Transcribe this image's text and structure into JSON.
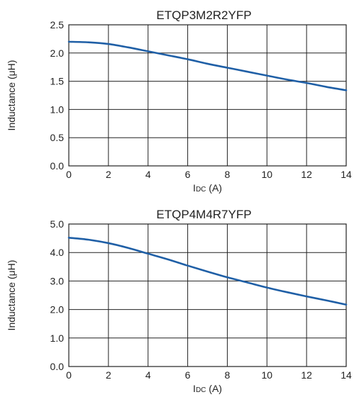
{
  "chart_data": [
    {
      "type": "line",
      "title": "ETQP3M2R2YFP",
      "xlabel": "IDC (A)",
      "ylabel": "Inductance (μH)",
      "xlim": [
        0,
        14
      ],
      "ylim": [
        0,
        2.5
      ],
      "x_ticks": [
        "0",
        "2",
        "4",
        "6",
        "8",
        "10",
        "12",
        "14"
      ],
      "y_ticks": [
        "0.0",
        "0.5",
        "1.0",
        "1.5",
        "2.0",
        "2.5"
      ],
      "grid": true,
      "line_color": "#1f5fa6",
      "series": [
        {
          "x": [
            0,
            1,
            2,
            3,
            4,
            5,
            6,
            7,
            8,
            9,
            10,
            11,
            12,
            13,
            14
          ],
          "values": [
            2.2,
            2.19,
            2.16,
            2.1,
            2.03,
            1.96,
            1.89,
            1.81,
            1.74,
            1.67,
            1.6,
            1.53,
            1.47,
            1.4,
            1.34
          ]
        }
      ]
    },
    {
      "type": "line",
      "title": "ETQP4M4R7YFP",
      "xlabel": "IDC (A)",
      "ylabel": "Inductance (μH)",
      "xlim": [
        0,
        14
      ],
      "ylim": [
        0,
        5.0
      ],
      "x_ticks": [
        "0",
        "2",
        "4",
        "6",
        "8",
        "10",
        "12",
        "14"
      ],
      "y_ticks": [
        "0.0",
        "1.0",
        "2.0",
        "3.0",
        "4.0",
        "5.0"
      ],
      "grid": true,
      "line_color": "#1f5fa6",
      "series": [
        {
          "x": [
            0,
            1,
            2,
            3,
            4,
            5,
            6,
            7,
            8,
            9,
            10,
            11,
            12,
            13,
            14
          ],
          "values": [
            4.52,
            4.45,
            4.33,
            4.16,
            3.96,
            3.76,
            3.54,
            3.33,
            3.13,
            2.95,
            2.77,
            2.61,
            2.46,
            2.32,
            2.17
          ]
        }
      ]
    }
  ]
}
